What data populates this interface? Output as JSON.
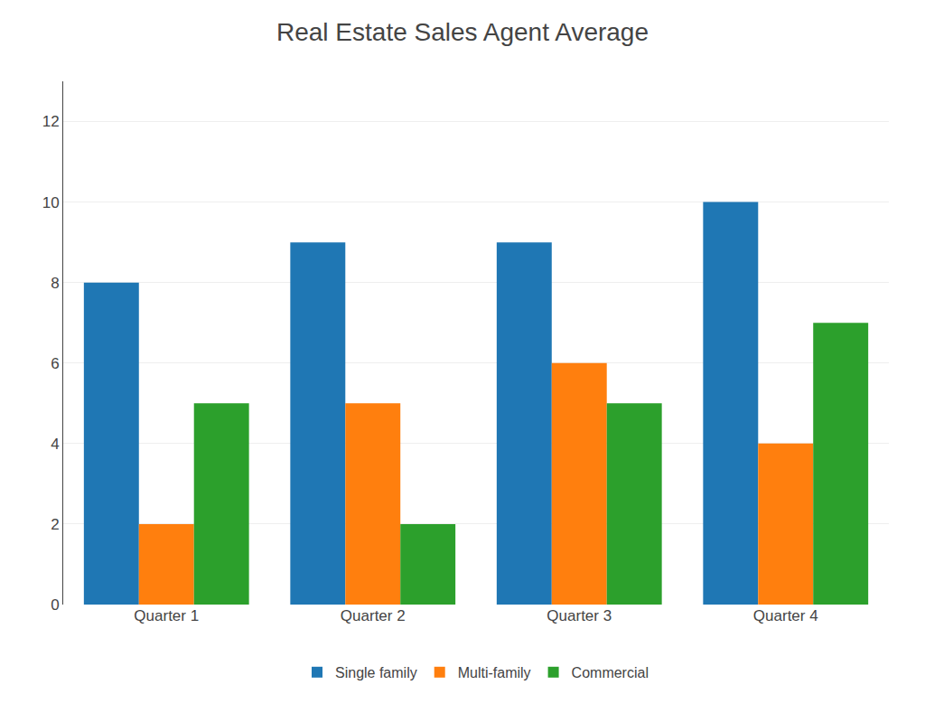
{
  "chart_data": {
    "type": "bar",
    "title": "Real Estate Sales Agent Average",
    "categories": [
      "Quarter 1",
      "Quarter 2",
      "Quarter 3",
      "Quarter 4"
    ],
    "series": [
      {
        "name": "Single family",
        "values": [
          8,
          9,
          9,
          10
        ]
      },
      {
        "name": "Multi-family",
        "values": [
          2,
          5,
          6,
          4
        ]
      },
      {
        "name": "Commercial",
        "values": [
          5,
          2,
          5,
          7
        ]
      }
    ],
    "ylim": [
      0,
      13
    ],
    "yticks": [
      0,
      2,
      4,
      6,
      8,
      10,
      12
    ],
    "grid": true,
    "legend": "bottom"
  }
}
